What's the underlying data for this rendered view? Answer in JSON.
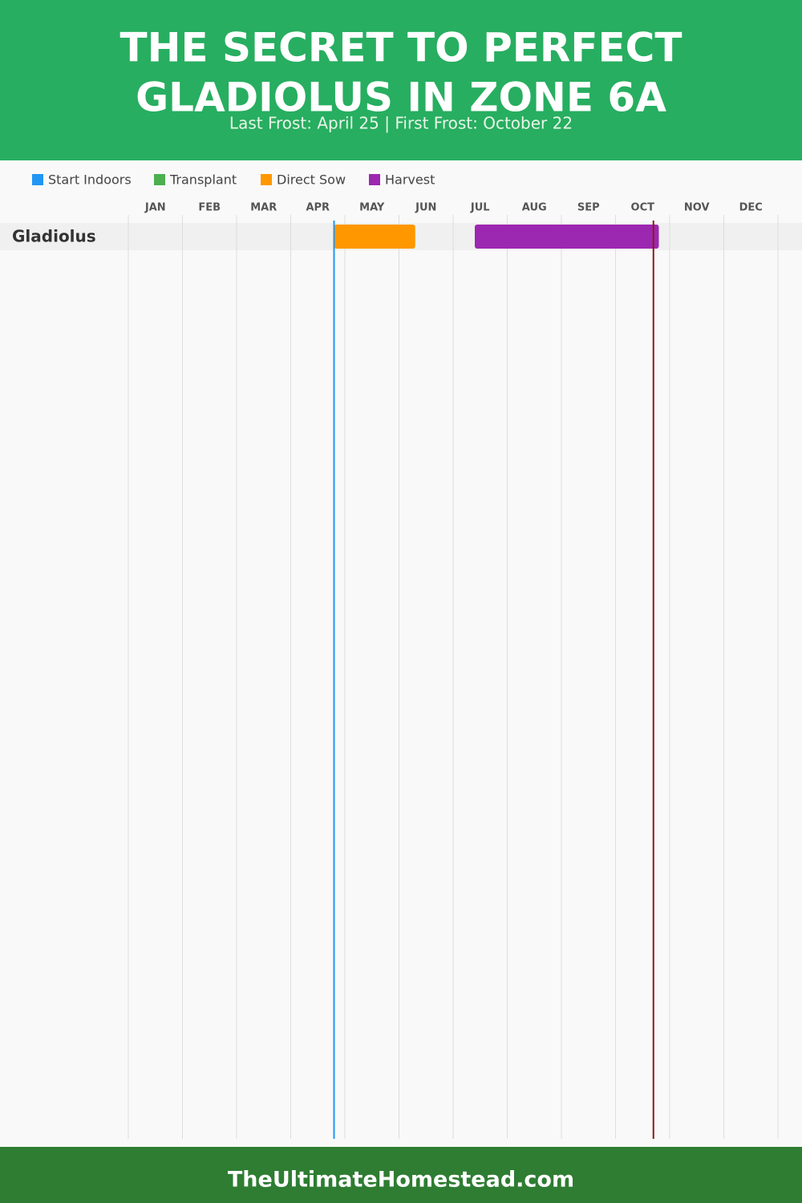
{
  "chart_data": {
    "type": "gantt",
    "title": [
      "THE SECRET TO PERFECT",
      "GLADIOLUS IN ZONE 6A"
    ],
    "subtitle": "Last Frost: April 25 | First Frost: October 22",
    "months": [
      "JAN",
      "FEB",
      "MAR",
      "APR",
      "MAY",
      "JUN",
      "JUL",
      "AUG",
      "SEP",
      "OCT",
      "NOV",
      "DEC"
    ],
    "categories": [
      "Gladiolus"
    ],
    "xlim": [
      0,
      12
    ],
    "xticks": [
      0,
      1,
      2,
      3,
      4,
      5,
      6,
      7,
      8,
      9,
      10,
      11,
      12
    ],
    "grid": true,
    "series": [
      {
        "name": "Start Indoors",
        "color": "#2196f3",
        "values": [
          null
        ]
      },
      {
        "name": "Transplant",
        "color": "#4caf50",
        "values": [
          null
        ]
      },
      {
        "name": "Direct Sow",
        "color": "#ff9800",
        "values": [
          [
            3.8,
            5.3
          ]
        ]
      },
      {
        "name": "Harvest",
        "color": "#9c27b0",
        "values": [
          [
            6.4,
            9.8
          ]
        ]
      }
    ],
    "frost_lines": [
      {
        "value": 3.8,
        "color": "#2196f3"
      },
      {
        "value": 9.7,
        "color": "#8b1a1a"
      }
    ],
    "footer": "TheUltimateHomestead.com"
  }
}
